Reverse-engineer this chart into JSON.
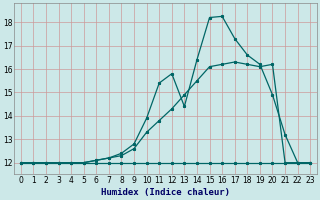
{
  "xlabel": "Humidex (Indice chaleur)",
  "bg_color": "#cce8e8",
  "grid_color": "#cc9999",
  "line_color": "#006666",
  "xlim": [
    -0.5,
    23.5
  ],
  "ylim": [
    11.5,
    18.8
  ],
  "xticks": [
    0,
    1,
    2,
    3,
    4,
    5,
    6,
    7,
    8,
    9,
    10,
    11,
    12,
    13,
    14,
    15,
    16,
    17,
    18,
    19,
    20,
    21,
    22,
    23
  ],
  "yticks": [
    12,
    13,
    14,
    15,
    16,
    17,
    18
  ],
  "line1_x": [
    0,
    1,
    2,
    3,
    4,
    5,
    6,
    7,
    8,
    9,
    10,
    11,
    12,
    13,
    14,
    15,
    16,
    17,
    18,
    19,
    20,
    21,
    22,
    23
  ],
  "line1_y": [
    12,
    12,
    12,
    12,
    12,
    12,
    12,
    12,
    12,
    12,
    12,
    12,
    12,
    12,
    12,
    12,
    12,
    12,
    12,
    12,
    12,
    12,
    12,
    12
  ],
  "line2_x": [
    0,
    1,
    2,
    3,
    4,
    5,
    6,
    7,
    8,
    9,
    10,
    11,
    12,
    13,
    14,
    15,
    16,
    17,
    18,
    19,
    20,
    21,
    22,
    23
  ],
  "line2_y": [
    12,
    12,
    12,
    12,
    12,
    12,
    12.1,
    12.2,
    12.3,
    12.6,
    13.3,
    13.8,
    14.3,
    14.9,
    15.5,
    16.1,
    16.2,
    16.3,
    16.2,
    16.1,
    16.2,
    12,
    12,
    12
  ],
  "line3_x": [
    0,
    1,
    2,
    3,
    4,
    5,
    6,
    7,
    8,
    9,
    10,
    11,
    12,
    13,
    14,
    15,
    16,
    17,
    18,
    19,
    20,
    21,
    22,
    23
  ],
  "line3_y": [
    12,
    12,
    12,
    12,
    12,
    12,
    12.1,
    12.2,
    12.4,
    12.8,
    13.9,
    15.4,
    15.8,
    14.4,
    16.4,
    18.2,
    18.25,
    17.3,
    16.6,
    16.2,
    14.9,
    13.2,
    12,
    12
  ]
}
